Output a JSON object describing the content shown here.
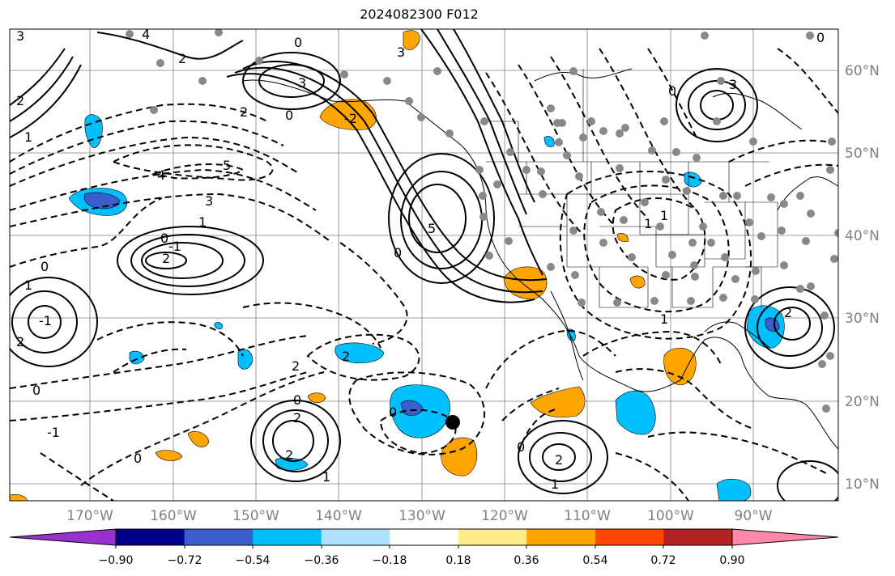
{
  "title": "2024082300 F012",
  "latitude_labels": [
    "60°N",
    "50°N",
    "40°N",
    "30°N",
    "20°N",
    "10°N"
  ],
  "longitude_labels": [
    "170°W",
    "160°W",
    "150°W",
    "140°W",
    "130°W",
    "120°W",
    "110°W",
    "100°W",
    "90°W"
  ],
  "colorbar": {
    "tick_labels": [
      "−0.90",
      "−0.72",
      "−0.54",
      "−0.36",
      "−0.18",
      "0.18",
      "0.36",
      "0.54",
      "0.72",
      "0.90"
    ],
    "colors": [
      "#9932cc",
      "#00008b",
      "#3a5fcd",
      "#00bfff",
      "#b0e2ff",
      "#ffffff",
      "#ffec8b",
      "#ffa500",
      "#ff4500",
      "#b22222",
      "#ff88aa"
    ]
  },
  "contour_labels": [
    "3",
    "4",
    "2",
    "2",
    "1",
    "3",
    "0",
    "-2",
    "3",
    "0",
    "2",
    "4",
    "5",
    "3",
    "1",
    "5",
    "0",
    "0",
    "2",
    "-1",
    "0",
    "1",
    "0",
    "-1",
    "0",
    "-1",
    "2",
    "2",
    "2",
    "0",
    "0",
    "2",
    "0",
    "2",
    "1",
    "1",
    "3",
    "1",
    "1",
    "0",
    "0",
    "1",
    "2",
    "2"
  ],
  "colors": {
    "solid_contour": "#000000",
    "dashed_contour": "#000000",
    "grid": "#808080",
    "station_dot": "#888888",
    "storm_marker": "#000000",
    "state_lines": "#000000"
  }
}
